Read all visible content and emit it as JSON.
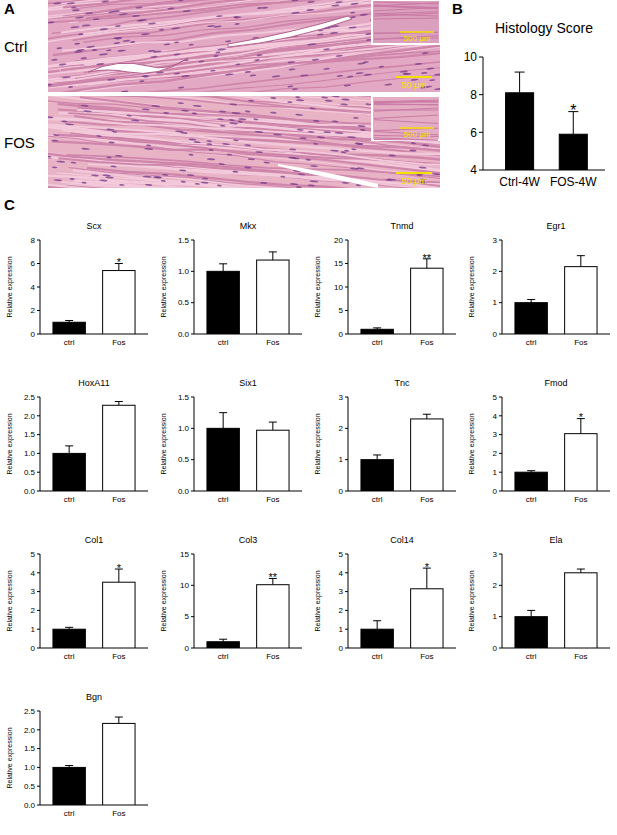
{
  "panel_a": {
    "label": "A",
    "images": [
      {
        "name": "Ctrl",
        "inset_scale_bar": "500 μm",
        "scale_bar": "50 μm"
      },
      {
        "name": "FOS",
        "inset_scale_bar": "500 μm",
        "scale_bar": "50 μm"
      }
    ]
  },
  "panel_b_label": "B",
  "panel_c_label": "C",
  "chart_data": [
    {
      "type": "bar",
      "title": "Histology Score",
      "categories": [
        "Ctrl-4W",
        "FOS-4W"
      ],
      "values": [
        8.1,
        5.9
      ],
      "errors": [
        1.1,
        1.2
      ],
      "annotations": [
        null,
        "*"
      ],
      "colors": [
        "#000000",
        "#000000"
      ],
      "ylim": [
        4,
        10
      ],
      "yticks": [
        4,
        6,
        8,
        10
      ]
    },
    {
      "type": "bar",
      "title": "Scx",
      "y_label": "Relative expression",
      "categories": [
        "ctrl",
        "Fos"
      ],
      "values": [
        1.0,
        5.4
      ],
      "errors": [
        0.15,
        0.6
      ],
      "annotations": [
        null,
        "*"
      ],
      "colors": [
        "#000000",
        "#ffffff"
      ],
      "ylim": [
        0,
        8
      ],
      "yticks": [
        0,
        2,
        4,
        6,
        8
      ]
    },
    {
      "type": "bar",
      "title": "Mkx",
      "y_label": "Relative expression",
      "categories": [
        "ctrl",
        "Fos"
      ],
      "values": [
        1.0,
        1.18
      ],
      "errors": [
        0.12,
        0.13
      ],
      "annotations": [
        null,
        null
      ],
      "colors": [
        "#000000",
        "#ffffff"
      ],
      "ylim": [
        0,
        1.5
      ],
      "yticks": [
        {
          "value": 0,
          "label": "0.0"
        },
        0.5,
        {
          "value": 1,
          "label": "1.0"
        },
        1.5
      ]
    },
    {
      "type": "bar",
      "title": "Tnmd",
      "y_label": "Relative expression",
      "categories": [
        "ctrl",
        "Fos"
      ],
      "values": [
        1.0,
        14.0
      ],
      "errors": [
        0.3,
        2.0
      ],
      "annotations": [
        null,
        "**"
      ],
      "colors": [
        "#000000",
        "#ffffff"
      ],
      "ylim": [
        0,
        20
      ],
      "yticks": [
        0,
        5,
        10,
        15,
        20
      ]
    },
    {
      "type": "bar",
      "title": "Egr1",
      "y_label": "Relative expression",
      "categories": [
        "ctrl",
        "Fos"
      ],
      "values": [
        1.0,
        2.15
      ],
      "errors": [
        0.1,
        0.35
      ],
      "annotations": [
        null,
        null
      ],
      "colors": [
        "#000000",
        "#ffffff"
      ],
      "ylim": [
        0,
        3
      ],
      "yticks": [
        0,
        1,
        2,
        3
      ]
    },
    {
      "type": "bar",
      "title": "HoxA11",
      "y_label": "Relative expression",
      "categories": [
        "ctrl",
        "Fos"
      ],
      "values": [
        1.0,
        2.28
      ],
      "errors": [
        0.2,
        0.1
      ],
      "annotations": [
        null,
        null
      ],
      "colors": [
        "#000000",
        "#ffffff"
      ],
      "ylim": [
        0,
        2.5
      ],
      "yticks": [
        {
          "value": 0,
          "label": "0.0"
        },
        0.5,
        {
          "value": 1,
          "label": "1.0"
        },
        1.5,
        {
          "value": 2,
          "label": "2.0"
        },
        2.5
      ]
    },
    {
      "type": "bar",
      "title": "Six1",
      "y_label": "Relative expression",
      "categories": [
        "ctrl",
        "Fos"
      ],
      "values": [
        1.0,
        0.97
      ],
      "errors": [
        0.25,
        0.13
      ],
      "annotations": [
        null,
        null
      ],
      "colors": [
        "#000000",
        "#ffffff"
      ],
      "ylim": [
        0,
        1.5
      ],
      "yticks": [
        {
          "value": 0,
          "label": "0.0"
        },
        0.5,
        {
          "value": 1,
          "label": "1.0"
        },
        1.5
      ]
    },
    {
      "type": "bar",
      "title": "Tnc",
      "y_label": "Relative expression",
      "categories": [
        "ctrl",
        "Fos"
      ],
      "values": [
        1.0,
        2.3
      ],
      "errors": [
        0.15,
        0.15
      ],
      "annotations": [
        null,
        null
      ],
      "colors": [
        "#000000",
        "#ffffff"
      ],
      "ylim": [
        0,
        3
      ],
      "yticks": [
        0,
        1,
        2,
        3
      ]
    },
    {
      "type": "bar",
      "title": "Fmod",
      "y_label": "Relative expression",
      "categories": [
        "ctrl",
        "Fos"
      ],
      "values": [
        1.0,
        3.05
      ],
      "errors": [
        0.08,
        0.8
      ],
      "annotations": [
        null,
        "*"
      ],
      "colors": [
        "#000000",
        "#ffffff"
      ],
      "ylim": [
        0,
        5
      ],
      "yticks": [
        0,
        1,
        2,
        3,
        4,
        5
      ]
    },
    {
      "type": "bar",
      "title": "Col1",
      "y_label": "Relative expression",
      "categories": [
        "ctrl",
        "Fos"
      ],
      "values": [
        1.0,
        3.5
      ],
      "errors": [
        0.1,
        0.7
      ],
      "annotations": [
        null,
        "*"
      ],
      "colors": [
        "#000000",
        "#ffffff"
      ],
      "ylim": [
        0,
        5
      ],
      "yticks": [
        0,
        1,
        2,
        3,
        4,
        5
      ]
    },
    {
      "type": "bar",
      "title": "Col3",
      "y_label": "Relative expression",
      "categories": [
        "ctrl",
        "Fos"
      ],
      "values": [
        1.0,
        10.1
      ],
      "errors": [
        0.4,
        1.0
      ],
      "annotations": [
        null,
        "**"
      ],
      "colors": [
        "#000000",
        "#ffffff"
      ],
      "ylim": [
        0,
        15
      ],
      "yticks": [
        0,
        5,
        10,
        15
      ]
    },
    {
      "type": "bar",
      "title": "Col14",
      "y_label": "Relative expression",
      "categories": [
        "ctrl",
        "Fos"
      ],
      "values": [
        1.0,
        3.15
      ],
      "errors": [
        0.45,
        1.1
      ],
      "annotations": [
        null,
        "*"
      ],
      "colors": [
        "#000000",
        "#ffffff"
      ],
      "ylim": [
        0,
        5
      ],
      "yticks": [
        0,
        1,
        2,
        3,
        4,
        5
      ]
    },
    {
      "type": "bar",
      "title": "Ela",
      "y_label": "Relative expression",
      "categories": [
        "ctrl",
        "Fos"
      ],
      "values": [
        1.0,
        2.4
      ],
      "errors": [
        0.2,
        0.12
      ],
      "annotations": [
        null,
        null
      ],
      "colors": [
        "#000000",
        "#ffffff"
      ],
      "ylim": [
        0,
        3
      ],
      "yticks": [
        0,
        1,
        2,
        3
      ]
    },
    {
      "type": "bar",
      "title": "Bgn",
      "y_label": "Relative expression",
      "categories": [
        "ctrl",
        "Fos"
      ],
      "values": [
        1.0,
        2.17
      ],
      "errors": [
        0.05,
        0.17
      ],
      "annotations": [
        null,
        null
      ],
      "colors": [
        "#000000",
        "#ffffff"
      ],
      "ylim": [
        0,
        2.5
      ],
      "yticks": [
        {
          "value": 0,
          "label": "0.0"
        },
        0.5,
        {
          "value": 1,
          "label": "1.0"
        },
        1.5,
        {
          "value": 2,
          "label": "2.0"
        },
        2.5
      ]
    }
  ]
}
